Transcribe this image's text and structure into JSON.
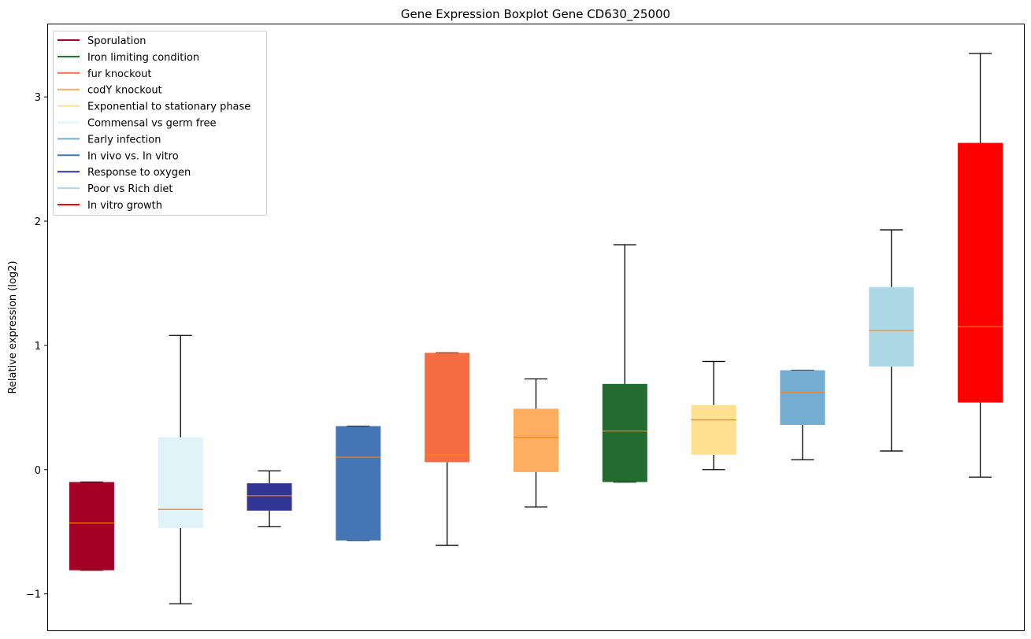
{
  "chart_data": {
    "type": "boxplot",
    "title": "Gene Expression Boxplot Gene CD630_25000",
    "xlabel": "",
    "ylabel": "Relative expression (log2)",
    "ylim": [
      -1.3,
      3.59
    ],
    "yticks": [
      -1,
      0,
      1,
      2,
      3
    ],
    "ytick_labels": [
      "−1",
      "0",
      "1",
      "2",
      "3"
    ],
    "grid": false,
    "legend_position": "top-left",
    "median_color": "#ff7f0e",
    "legend": [
      {
        "label": "Sporulation",
        "color": "#a50026"
      },
      {
        "label": "Iron limiting condition",
        "color": "#236c2f"
      },
      {
        "label": "fur knockout",
        "color": "#f46d43"
      },
      {
        "label": "codY knockout",
        "color": "#fdae61"
      },
      {
        "label": "Exponential to stationary phase",
        "color": "#fee090"
      },
      {
        "label": "Commensal vs germ free",
        "color": "#e0f3f8"
      },
      {
        "label": "Early infection",
        "color": "#74add1"
      },
      {
        "label": "In vivo vs. In vitro",
        "color": "#4575b4"
      },
      {
        "label": "Response to oxygen",
        "color": "#313695"
      },
      {
        "label": "Poor vs Rich diet",
        "color": "#add8e6"
      },
      {
        "label": "In vitro growth",
        "color": "#ff0000"
      }
    ],
    "boxes": [
      {
        "series": "Sporulation",
        "color": "#a50026",
        "whisker_low": -0.81,
        "q1": -0.81,
        "median": -0.43,
        "q3": -0.1,
        "whisker_high": -0.1
      },
      {
        "series": "Commensal vs germ free",
        "color": "#e0f3f8",
        "whisker_low": -1.08,
        "q1": -0.47,
        "median": -0.32,
        "q3": 0.26,
        "whisker_high": 1.08
      },
      {
        "series": "Response to oxygen",
        "color": "#313695",
        "whisker_low": -0.46,
        "q1": -0.33,
        "median": -0.21,
        "q3": -0.11,
        "whisker_high": -0.01
      },
      {
        "series": "In vivo vs. In vitro",
        "color": "#4575b4",
        "whisker_low": -0.57,
        "q1": -0.57,
        "median": 0.1,
        "q3": 0.35,
        "whisker_high": 0.35
      },
      {
        "series": "fur knockout",
        "color": "#f46d43",
        "whisker_low": -0.61,
        "q1": 0.06,
        "median": 0.12,
        "q3": 0.94,
        "whisker_high": 0.94
      },
      {
        "series": "codY knockout",
        "color": "#fdae61",
        "whisker_low": -0.3,
        "q1": -0.02,
        "median": 0.26,
        "q3": 0.49,
        "whisker_high": 0.73
      },
      {
        "series": "Iron limiting condition",
        "color": "#236c2f",
        "whisker_low": -0.1,
        "q1": -0.1,
        "median": 0.31,
        "q3": 0.69,
        "whisker_high": 1.81
      },
      {
        "series": "Exponential to stationary phase",
        "color": "#fee090",
        "whisker_low": 0.0,
        "q1": 0.12,
        "median": 0.4,
        "q3": 0.52,
        "whisker_high": 0.87
      },
      {
        "series": "Early infection",
        "color": "#74add1",
        "whisker_low": 0.08,
        "q1": 0.36,
        "median": 0.62,
        "q3": 0.8,
        "whisker_high": 0.8
      },
      {
        "series": "Poor vs Rich diet",
        "color": "#add8e6",
        "whisker_low": 0.15,
        "q1": 0.83,
        "median": 1.12,
        "q3": 1.47,
        "whisker_high": 1.93
      },
      {
        "series": "In vitro growth",
        "color": "#ff0000",
        "whisker_low": -0.06,
        "q1": 0.54,
        "median": 1.15,
        "q3": 2.63,
        "whisker_high": 3.35
      }
    ]
  }
}
